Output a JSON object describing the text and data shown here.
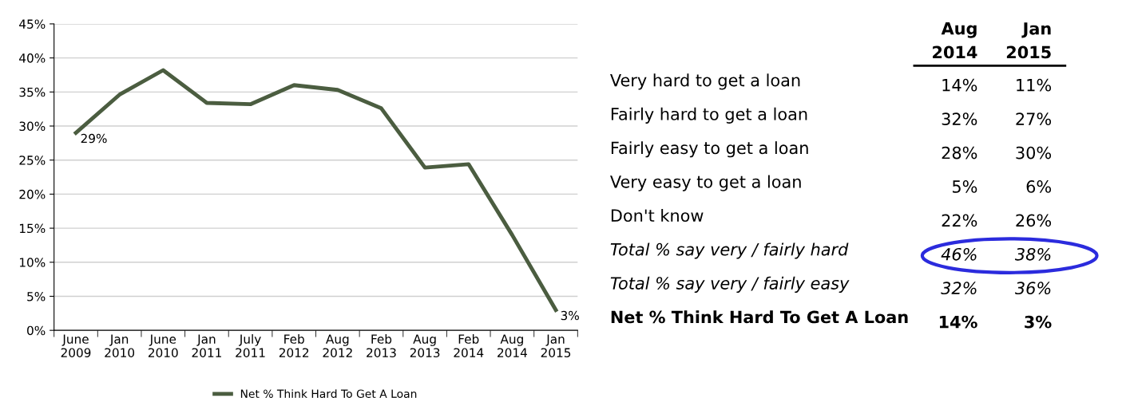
{
  "chart_data": [
    {
      "type": "line",
      "categories": [
        "June 2009",
        "Jan 2010",
        "June 2010",
        "Jan 2011",
        "July 2011",
        "Feb 2012",
        "Aug 2012",
        "Feb 2013",
        "Aug 2013",
        "Feb 2014",
        "Aug 2014",
        "Jan 2015"
      ],
      "series": [
        {
          "name": "Net % Think Hard To Get A Loan",
          "color": "#4b5d40",
          "values": [
            29,
            34.6,
            38.2,
            33.4,
            33.2,
            36.0,
            35.3,
            32.6,
            23.9,
            24.4,
            14,
            3
          ],
          "value_labels": [
            "29%",
            null,
            null,
            null,
            null,
            null,
            null,
            null,
            null,
            null,
            null,
            "3%"
          ]
        }
      ],
      "ylim": [
        0,
        45
      ],
      "yticks": [
        {
          "value": 0,
          "label": "0%"
        },
        {
          "value": 5,
          "label": "5%"
        },
        {
          "value": 10,
          "label": "10%"
        },
        {
          "value": 15,
          "label": "15%"
        },
        {
          "value": 20,
          "label": "20%"
        },
        {
          "value": 25,
          "label": "25%"
        },
        {
          "value": 30,
          "label": "30%"
        },
        {
          "value": 35,
          "label": "35%"
        },
        {
          "value": 40,
          "label": "40%"
        },
        {
          "value": 45,
          "label": "45%"
        }
      ],
      "grid": "y",
      "legend": "bottom",
      "marker": "none",
      "line_style": "solid"
    },
    {
      "type": "other",
      "categories": [
        "Very hard to get a loan",
        "Fairly hard to get a loan",
        "Fairly easy to get a loan",
        "Very easy to get a loan",
        "Don't know",
        "Total % say very / fairly hard",
        "Total % say very / fairly easy",
        "Net % Think Hard To Get A Loan"
      ],
      "series": [
        {
          "name": "Aug 2014",
          "values": [
            14,
            32,
            28,
            5,
            22,
            46,
            32,
            14
          ],
          "value_labels": [
            "14%",
            "32%",
            "28%",
            "5%",
            "22%",
            "46%",
            "32%",
            "14%"
          ]
        },
        {
          "name": "Jan 2015",
          "values": [
            11,
            27,
            30,
            6,
            26,
            38,
            36,
            3
          ],
          "value_labels": [
            "11%",
            "27%",
            "30%",
            "6%",
            "26%",
            "38%",
            "36%",
            "3%"
          ]
        }
      ]
    }
  ]
}
